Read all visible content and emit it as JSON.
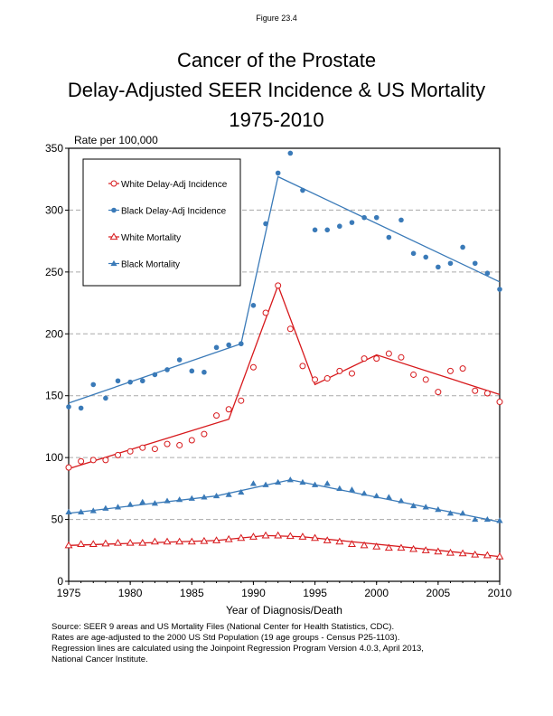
{
  "figure_label": "Figure 23.4",
  "title_lines": [
    "Cancer of the Prostate",
    "Delay-Adjusted SEER Incidence & US Mortality",
    "1975-2010"
  ],
  "source_lines": [
    "Source: SEER 9 areas and US Mortality Files (National Center for Health Statistics, CDC).",
    "Rates are age-adjusted to the 2000 US Std Population (19 age groups - Census P25-1103).",
    "Regression lines are calculated using the Joinpoint Regression Program Version 4.0.3, April 2013,",
    "National Cancer Institute."
  ],
  "chart_data": {
    "type": "scatter",
    "xlabel": "Year of Diagnosis/Death",
    "ylabel": "Rate per 100,000",
    "xlim": [
      1975,
      2010
    ],
    "ylim": [
      0,
      350
    ],
    "xticks": [
      1975,
      1980,
      1985,
      1990,
      1995,
      2000,
      2005,
      2010
    ],
    "yticks": [
      0,
      50,
      100,
      150,
      200,
      250,
      300,
      350
    ],
    "grid": "horizontal dashed",
    "legend_position": "top-left",
    "x": [
      1975,
      1976,
      1977,
      1978,
      1979,
      1980,
      1981,
      1982,
      1983,
      1984,
      1985,
      1986,
      1987,
      1988,
      1989,
      1990,
      1991,
      1992,
      1993,
      1994,
      1995,
      1996,
      1997,
      1998,
      1999,
      2000,
      2001,
      2002,
      2003,
      2004,
      2005,
      2006,
      2007,
      2008,
      2009,
      2010
    ],
    "series": [
      {
        "name": "White Delay-Adj Incidence",
        "color": "#d7191c",
        "marker": "open-circle",
        "values": [
          92,
          97,
          98,
          98,
          102,
          105,
          108,
          107,
          111,
          110,
          114,
          119,
          134,
          139,
          146,
          173,
          217,
          239,
          204,
          174,
          163,
          164,
          170,
          168,
          180,
          180,
          184,
          181,
          167,
          163,
          153,
          170,
          172,
          154,
          152,
          145
        ],
        "fit": [
          [
            1975,
            91
          ],
          [
            1988,
            131
          ],
          [
            1992,
            239
          ],
          [
            1995,
            159
          ],
          [
            2000,
            183
          ],
          [
            2010,
            151
          ]
        ]
      },
      {
        "name": "Black Delay-Adj Incidence",
        "color": "#3a7ab8",
        "marker": "filled-circle",
        "values": [
          141,
          140,
          159,
          148,
          162,
          161,
          162,
          167,
          171,
          179,
          170,
          169,
          189,
          191,
          192,
          223,
          289,
          330,
          346,
          316,
          284,
          284,
          287,
          290,
          294,
          294,
          278,
          292,
          265,
          262,
          254,
          257,
          270,
          257,
          249,
          236
        ],
        "fit": [
          [
            1975,
            144
          ],
          [
            1989,
            192
          ],
          [
            1992,
            327
          ],
          [
            2010,
            242
          ]
        ]
      },
      {
        "name": "White Mortality",
        "color": "#d7191c",
        "marker": "open-triangle",
        "values": [
          29,
          30,
          30,
          30.5,
          31,
          31,
          31,
          32,
          32,
          32,
          32,
          32.5,
          33,
          34,
          35,
          36,
          37,
          37,
          36.5,
          36,
          35,
          33,
          32,
          30,
          29,
          28,
          27,
          27,
          26,
          25,
          24,
          23,
          22.5,
          21.5,
          21,
          20
        ],
        "fit": [
          [
            1975,
            29
          ],
          [
            1987,
            33
          ],
          [
            1991,
            37
          ],
          [
            1994,
            36
          ],
          [
            2010,
            20
          ]
        ]
      },
      {
        "name": "Black Mortality",
        "color": "#3a7ab8",
        "marker": "filled-triangle",
        "values": [
          56,
          56,
          57,
          59,
          60,
          62,
          64,
          63,
          65,
          66,
          67,
          68,
          69,
          70,
          72,
          79,
          78,
          80,
          82,
          80,
          78,
          79,
          75,
          74,
          71,
          69,
          68,
          65,
          61,
          60,
          58,
          55,
          55,
          50,
          50,
          49
        ],
        "fit": [
          [
            1975,
            55
          ],
          [
            1987,
            69
          ],
          [
            1993,
            82
          ],
          [
            2010,
            48
          ]
        ]
      }
    ]
  }
}
